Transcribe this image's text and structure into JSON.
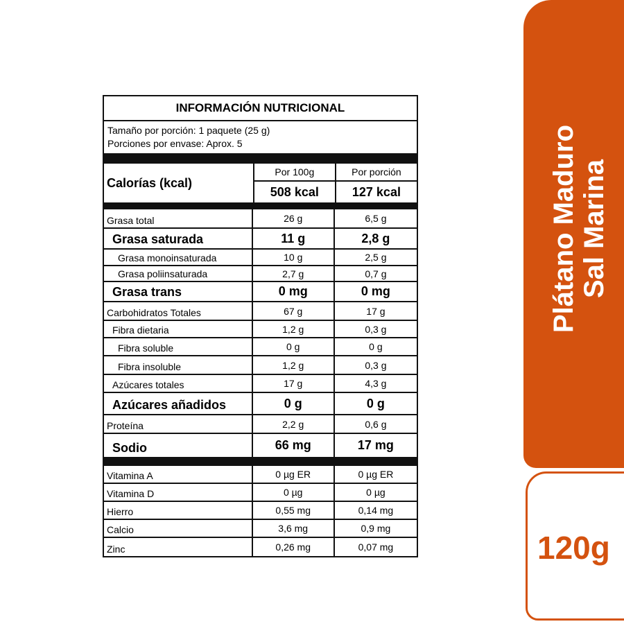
{
  "label": {
    "title": "INFORMACIÓN NUTRICIONAL",
    "serving_size": "Tamaño por porción: 1 paquete (25 g)",
    "servings": "Porciones por envase: Aprox. 5",
    "calories_label": "Calorías (kcal)",
    "col1": "Por 100g",
    "col2": "Por porción",
    "cal1": "508 kcal",
    "cal2": "127 kcal",
    "rows": [
      {
        "n": "Grasa total",
        "a": "26 g",
        "b": "6,5 g"
      },
      {
        "n": "Grasa saturada",
        "a": "11 g",
        "b": "2,8 g"
      },
      {
        "n": "Grasa monoinsaturada",
        "a": "10 g",
        "b": "2,5 g"
      },
      {
        "n": "Grasa poliinsaturada",
        "a": "2,7 g",
        "b": "0,7 g"
      },
      {
        "n": "Grasa trans",
        "a": "0 mg",
        "b": "0 mg"
      },
      {
        "n": "Carbohidratos Totales",
        "a": "67 g",
        "b": "17 g"
      },
      {
        "n": "Fibra dietaria",
        "a": "1,2 g",
        "b": "0,3 g"
      },
      {
        "n": "Fibra soluble",
        "a": "0 g",
        "b": "0 g"
      },
      {
        "n": "Fibra insoluble",
        "a": "1,2 g",
        "b": "0,3 g"
      },
      {
        "n": "Azúcares totales",
        "a": "17 g",
        "b": "4,3 g"
      },
      {
        "n": "Azúcares añadidos",
        "a": "0 g",
        "b": "0 g"
      },
      {
        "n": "Proteína",
        "a": "2,2 g",
        "b": "0,6 g"
      },
      {
        "n": "Sodio",
        "a": "66 mg",
        "b": "17 mg"
      }
    ],
    "vitamins": [
      {
        "n": "Vitamina A",
        "a": "0 µg ER",
        "b": "0 µg ER"
      },
      {
        "n": "Vitamina D",
        "a": "0 µg",
        "b": "0 µg"
      },
      {
        "n": "Hierro",
        "a": "0,55 mg",
        "b": "0,14 mg"
      },
      {
        "n": "Calcio",
        "a": "3,6 mg",
        "b": "0,9 mg"
      },
      {
        "n": "Zinc",
        "a": "0,26 mg",
        "b": "0,07 mg"
      }
    ]
  },
  "product": {
    "name_line1": "Plátano Maduro",
    "name_line2": "Sal Marina",
    "weight": "120g",
    "brand_color": "#d4520f"
  }
}
